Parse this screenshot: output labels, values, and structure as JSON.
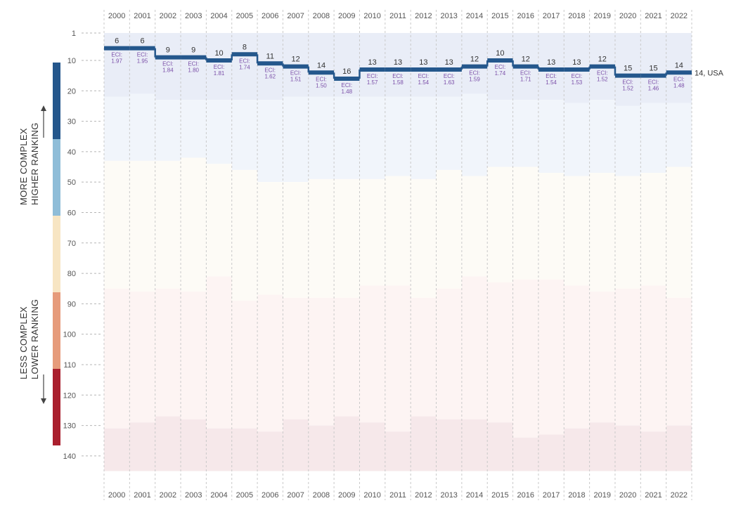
{
  "chart_data": {
    "type": "line",
    "title": "",
    "xlabel": "",
    "ylabel": "",
    "years": [
      2000,
      2001,
      2002,
      2003,
      2004,
      2005,
      2006,
      2007,
      2008,
      2009,
      2010,
      2011,
      2012,
      2013,
      2014,
      2015,
      2016,
      2017,
      2018,
      2019,
      2020,
      2021,
      2022
    ],
    "y_ticks": [
      1,
      10,
      20,
      30,
      40,
      50,
      60,
      70,
      80,
      90,
      100,
      110,
      120,
      130,
      140
    ],
    "ylim": [
      1,
      145
    ],
    "y_reversed": true,
    "series": [
      {
        "name": "USA",
        "rank": [
          6,
          6,
          9,
          9,
          10,
          8,
          11,
          12,
          14,
          16,
          13,
          13,
          13,
          13,
          12,
          10,
          12,
          13,
          13,
          12,
          15,
          15,
          14
        ],
        "eci": [
          1.97,
          1.95,
          1.84,
          1.8,
          1.81,
          1.74,
          1.62,
          1.51,
          1.5,
          1.48,
          1.57,
          1.58,
          1.54,
          1.63,
          1.59,
          1.74,
          1.71,
          1.54,
          1.53,
          1.52,
          1.52,
          1.46,
          1.48
        ]
      }
    ],
    "eci_prefix": "ECI:",
    "end_label": "14, USA",
    "band_boundaries": {
      "b1": [
        22,
        21,
        23,
        23,
        23,
        23,
        23,
        22,
        22,
        22,
        22,
        22,
        22,
        22,
        21,
        23,
        23,
        23,
        24,
        23,
        25,
        24,
        24
      ],
      "b2": [
        43,
        43,
        43,
        42,
        44,
        46,
        50,
        50,
        49,
        49,
        49,
        48,
        49,
        46,
        48,
        45,
        45,
        47,
        48,
        47,
        48,
        47,
        45
      ],
      "b3": [
        85,
        86,
        85,
        86,
        81,
        89,
        87,
        88,
        88,
        88,
        84,
        84,
        88,
        85,
        81,
        83,
        82,
        82,
        84,
        86,
        85,
        84,
        88
      ],
      "b4": [
        131,
        129,
        127,
        128,
        131,
        131,
        132,
        128,
        130,
        127,
        129,
        132,
        127,
        128,
        128,
        129,
        134,
        133,
        131,
        129,
        130,
        132,
        130
      ]
    },
    "band_colors": [
      "#e9edf7",
      "#f1f5fb",
      "#fdfbf6",
      "#fdf4f3",
      "#f6e8ea"
    ],
    "scale_colors": [
      "#24578c",
      "#8fbdd8",
      "#f7e5c3",
      "#e69b7b",
      "#aa1f2e"
    ],
    "line_color": "#24578c"
  },
  "legend": {
    "more_line1": "MORE COMPLEX",
    "more_line2": "HIGHER RANKING",
    "less_line1": "LESS COMPLEX",
    "less_line2": "LOWER RANKING"
  }
}
